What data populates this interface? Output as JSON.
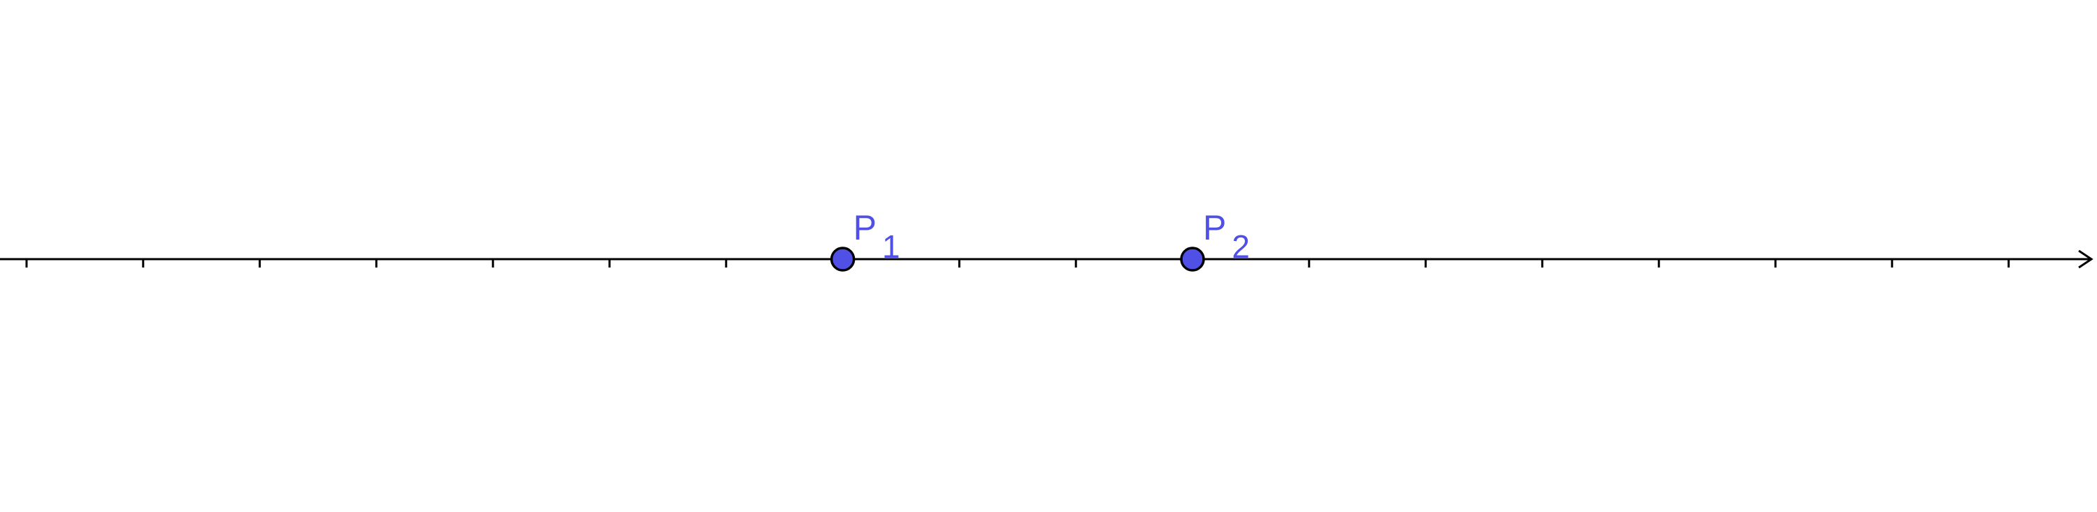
{
  "number_line": {
    "tick_count": 18,
    "has_arrow": true,
    "axis_color": "#000000"
  },
  "points": [
    {
      "name": "P",
      "subscript": "1",
      "tick_index": 7,
      "color": "#5050e6"
    },
    {
      "name": "P",
      "subscript": "2",
      "tick_index": 10,
      "color": "#5050e6"
    }
  ]
}
